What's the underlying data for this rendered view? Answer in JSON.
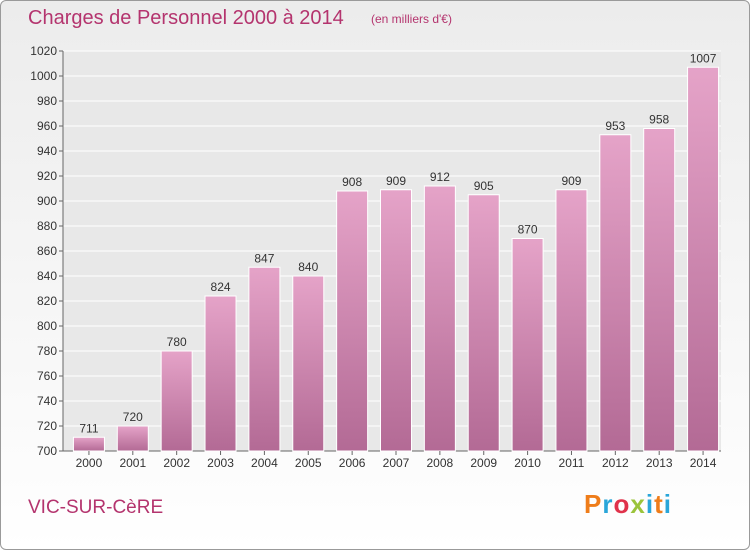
{
  "chart_data": {
    "type": "bar",
    "title": "Charges de Personnel 2000 à 2014",
    "subtitle": "(en milliers d'€)",
    "categories": [
      "2000",
      "2001",
      "2002",
      "2003",
      "2004",
      "2005",
      "2006",
      "2007",
      "2008",
      "2009",
      "2010",
      "2011",
      "2012",
      "2013",
      "2014"
    ],
    "values": [
      711,
      720,
      780,
      824,
      847,
      840,
      908,
      909,
      912,
      905,
      870,
      909,
      953,
      958,
      1007
    ],
    "ylim": [
      700,
      1020
    ],
    "yticks": [
      700,
      720,
      740,
      760,
      780,
      800,
      820,
      840,
      860,
      880,
      900,
      920,
      940,
      960,
      980,
      1000,
      1020
    ],
    "grid": true,
    "bar_color": "#e5a3c8",
    "bar_color_dark": "#b36a95"
  },
  "footer": {
    "place": "VIC-SUR-CèRE",
    "logo": "Proxiti",
    "logo_colors": [
      "#ef7d1a",
      "#2aa6d9",
      "#e0324b",
      "#9bc43b",
      "#2aa6d9",
      "#ef7d1a",
      "#2aa6d9"
    ]
  }
}
